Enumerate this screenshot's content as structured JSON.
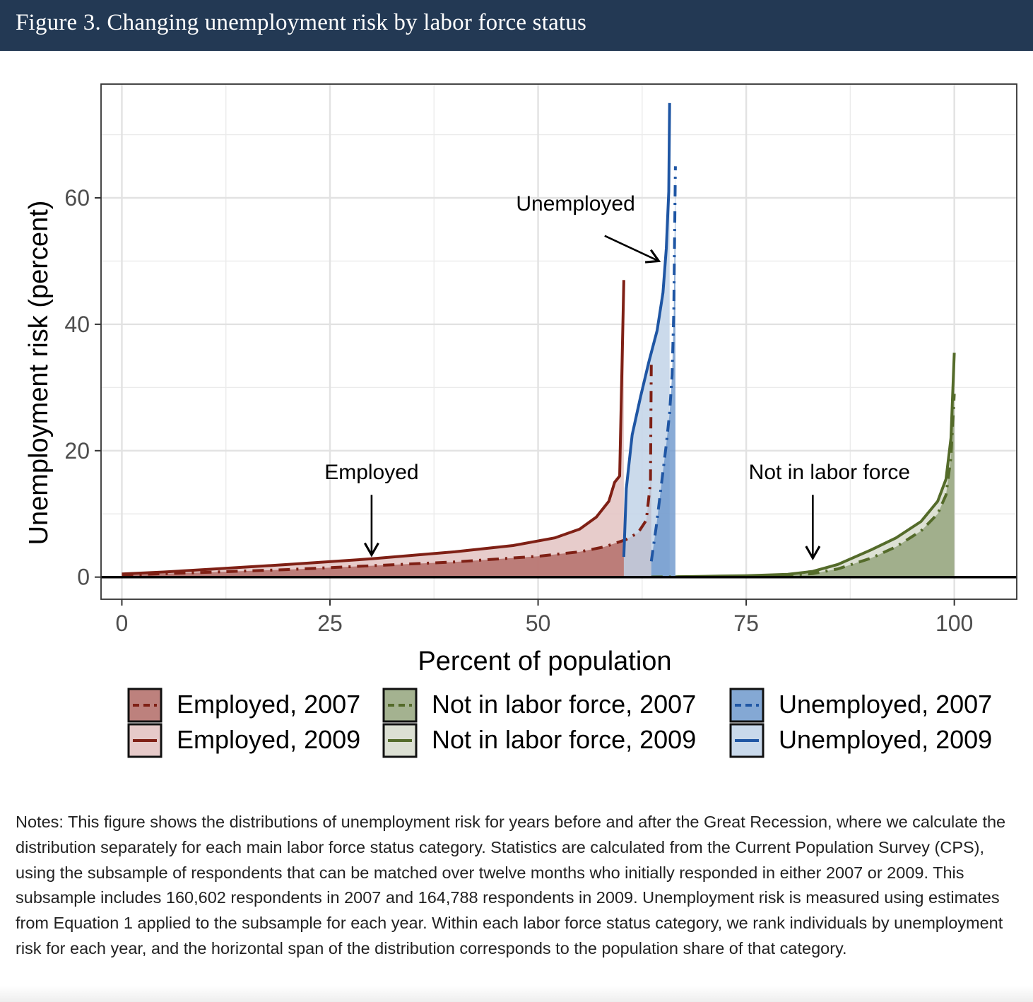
{
  "figure": {
    "title": "Figure 3. Changing unemployment risk by labor force status"
  },
  "chart_data": {
    "type": "area",
    "xlabel": "Percent of population",
    "ylabel": "Unemployment risk (percent)",
    "xlim": [
      -2.5,
      107.5
    ],
    "ylim": [
      -3.5,
      78
    ],
    "x_ticks": [
      0,
      25,
      50,
      75,
      100
    ],
    "x_tick_labels": [
      "0",
      "25",
      "50",
      "75",
      "100"
    ],
    "y_ticks": [
      0,
      20,
      40,
      60
    ],
    "y_tick_labels": [
      "0",
      "20",
      "40",
      "60"
    ],
    "grid": true,
    "legend_position": "bottom",
    "annotations": [
      {
        "text": "Employed",
        "text_x": 30,
        "text_y": 15.5,
        "arrow_from": [
          30,
          13
        ],
        "arrow_to": [
          30,
          3.5
        ]
      },
      {
        "text": "Unemployed",
        "text_x": 54.5,
        "text_y": 58,
        "arrow_from": [
          58,
          54
        ],
        "arrow_to": [
          64.5,
          50
        ]
      },
      {
        "text": "Not in labor force",
        "text_x": 85,
        "text_y": 15.5,
        "arrow_from": [
          83,
          13
        ],
        "arrow_to": [
          83,
          3
        ]
      }
    ],
    "series": [
      {
        "name": "Employed, 2007",
        "group": "employed",
        "year": 2007,
        "line": "dashed",
        "line_color": "#7f2015",
        "fill_color": "#b26b66",
        "x": [
          0,
          5,
          10,
          20,
          30,
          40,
          50,
          55,
          58,
          60.5,
          62,
          63,
          63.5,
          63.6
        ],
        "y": [
          0.3,
          0.55,
          0.75,
          1.2,
          1.8,
          2.4,
          3.3,
          4.0,
          4.8,
          5.9,
          7.0,
          9.0,
          15,
          34.5
        ]
      },
      {
        "name": "Employed, 2009",
        "group": "employed",
        "year": 2009,
        "line": "solid",
        "line_color": "#7f2015",
        "fill_color": "#e2c1c0",
        "x": [
          0,
          5,
          10,
          20,
          30,
          40,
          47,
          52,
          55,
          57,
          58.5,
          59.2,
          59.8,
          60.3
        ],
        "y": [
          0.5,
          0.8,
          1.2,
          2.0,
          2.9,
          4.0,
          5.0,
          6.2,
          7.6,
          9.5,
          12.0,
          15.0,
          16,
          47
        ]
      },
      {
        "name": "Unemployed, 2007",
        "group": "unemployed",
        "year": 2007,
        "line": "dashed",
        "line_color": "#1f56a4",
        "fill_color": "#6f99cd",
        "x": [
          63.6,
          64.2,
          64.8,
          65.4,
          65.8,
          66.1,
          66.3,
          66.5
        ],
        "y": [
          2.5,
          8.0,
          14.5,
          21.0,
          26.0,
          32.0,
          42.0,
          65.0
        ]
      },
      {
        "name": "Unemployed, 2009",
        "group": "unemployed",
        "year": 2009,
        "line": "solid",
        "line_color": "#1f56a4",
        "fill_color": "#c0d2e7",
        "x": [
          60.3,
          60.6,
          61.3,
          62.3,
          63.3,
          64.3,
          65.0,
          65.4,
          65.7,
          65.8
        ],
        "y": [
          3.2,
          14.0,
          22.5,
          28.5,
          34.0,
          39.0,
          45.0,
          52.0,
          61.0,
          75.0
        ]
      },
      {
        "name": "Not in labor force, 2007",
        "group": "nilf",
        "year": 2007,
        "line": "dashed",
        "line_color": "#546b2a",
        "fill_color": "#94a47c",
        "x": [
          63.6,
          70,
          75,
          80,
          83,
          86,
          90,
          93,
          96,
          98,
          99,
          99.6,
          100
        ],
        "y": [
          0.02,
          0.08,
          0.15,
          0.3,
          0.55,
          1.3,
          3.0,
          4.8,
          7.3,
          10.0,
          13.0,
          19.0,
          29.0
        ]
      },
      {
        "name": "Not in labor force, 2009",
        "group": "nilf",
        "year": 2009,
        "line": "solid",
        "line_color": "#546b2a",
        "fill_color": "#d6dbcb",
        "x": [
          66.5,
          70,
          75,
          80,
          83,
          86,
          90,
          93,
          96,
          98,
          99,
          99.6,
          100
        ],
        "y": [
          0.05,
          0.12,
          0.22,
          0.45,
          0.9,
          2.0,
          4.3,
          6.2,
          8.8,
          12.0,
          15.5,
          22.0,
          35.5
        ]
      }
    ],
    "legend": {
      "columns": [
        [
          "Employed, 2007",
          "Employed, 2009"
        ],
        [
          "Not in labor force, 2007",
          "Not in labor force, 2009"
        ],
        [
          "Unemployed, 2007",
          "Unemployed, 2009"
        ]
      ]
    }
  },
  "notes": {
    "text": "Notes: This figure shows the distributions of unemployment risk for years before and after the Great Recession, where we calculate the distribution separately for each main labor force status category. Statistics are calculated from the Current Population Survey (CPS), using the subsample of respondents that can be matched over twelve months who initially responded in either 2007 or 2009. This subsample includes 160,602 respondents in 2007 and 164,788 respondents in 2009. Unemployment risk is measured using estimates from Equation 1 applied to the subsample for each year. Within each labor force status category, we rank individuals by unemployment risk for each year, and the horizontal span of the distribution corresponds to the population share of that category."
  },
  "colors": {
    "title_bar": "#233954",
    "employed": "#7f2015",
    "unemployed": "#1f56a4",
    "not_in_labor_force": "#546b2a"
  }
}
